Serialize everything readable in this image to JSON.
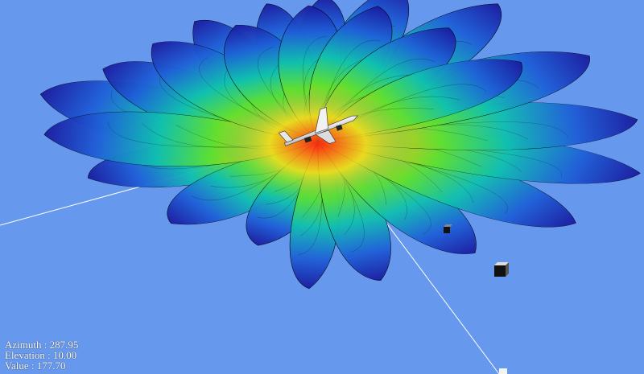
{
  "readout": {
    "azimuth": "Azimuth : 287.95",
    "elevation": "Elevation : 10.00",
    "value": "Value : 177.70"
  },
  "colors": {
    "background": "#6699ee",
    "colormap": [
      "#1a1a9e",
      "#1f5fd8",
      "#10b0c8",
      "#20d070",
      "#a8e020",
      "#f0c020",
      "#e83020"
    ],
    "edge_lines": "#000000",
    "ray_lines": "#ffffff",
    "markers": "#111111"
  },
  "icons": {
    "aircraft": "aircraft-model-icon",
    "marker": "cube-marker-icon"
  }
}
